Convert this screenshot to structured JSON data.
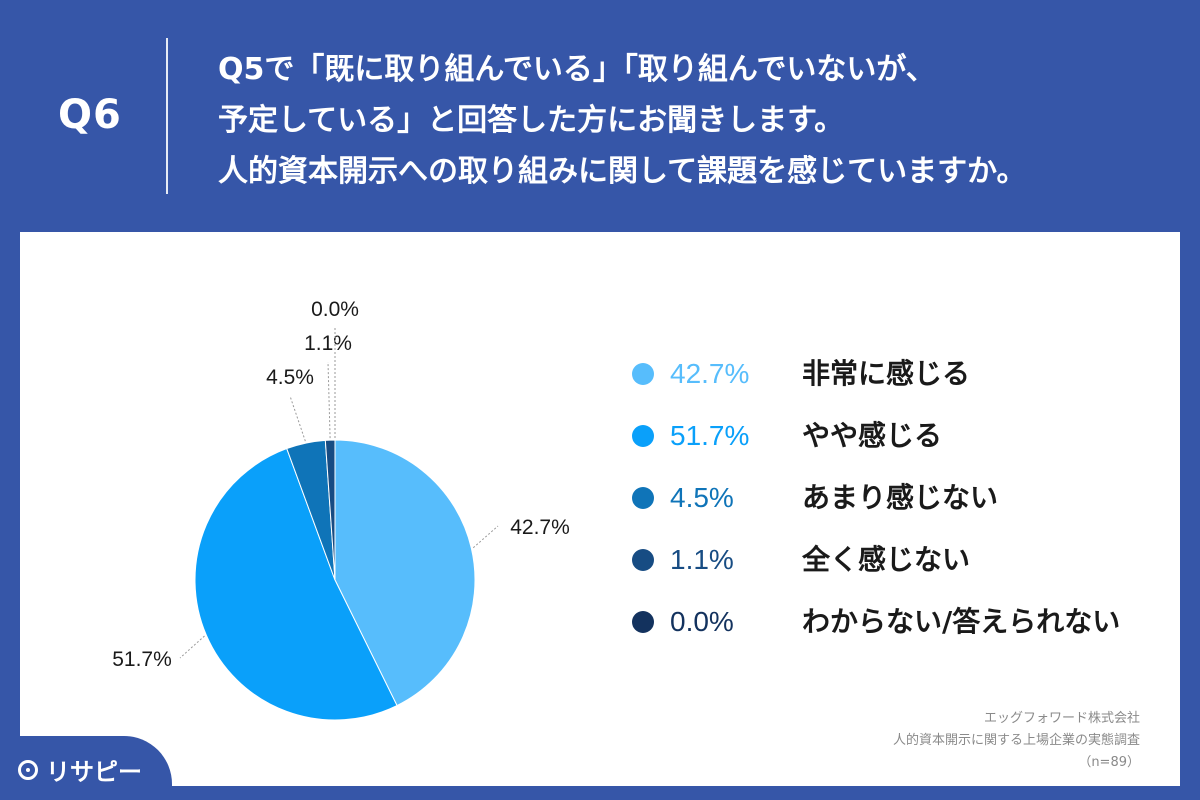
{
  "header": {
    "q_number": "Q6",
    "question_lines": [
      "Q5で「既に取り組んでいる」「取り組んでいないが、",
      "予定している」と回答した方にお聞きします。",
      "人的資本開示への取り組みに関して課題を感じていますか。"
    ]
  },
  "chart_data": {
    "type": "pie",
    "slices": [
      {
        "label": "非常に感じる",
        "value": 42.7,
        "display": "42.7%",
        "color": "#57bdfc"
      },
      {
        "label": "やや感じる",
        "value": 51.7,
        "display": "51.7%",
        "color": "#0aa0fa"
      },
      {
        "label": "あまり感じない",
        "value": 4.5,
        "display": "4.5%",
        "color": "#0f74b8"
      },
      {
        "label": "全く感じない",
        "value": 1.1,
        "display": "1.1%",
        "color": "#174c83"
      },
      {
        "label": "わからない/答えられない",
        "value": 0.0,
        "display": "0.0%",
        "color": "#13325e"
      }
    ],
    "legend_position": "right"
  },
  "source": {
    "company": "エッグフォワード株式会社",
    "survey": "人的資本開示に関する上場企業の実態調査",
    "sample": "（n=89）"
  },
  "logo": {
    "text": "リサピー"
  }
}
